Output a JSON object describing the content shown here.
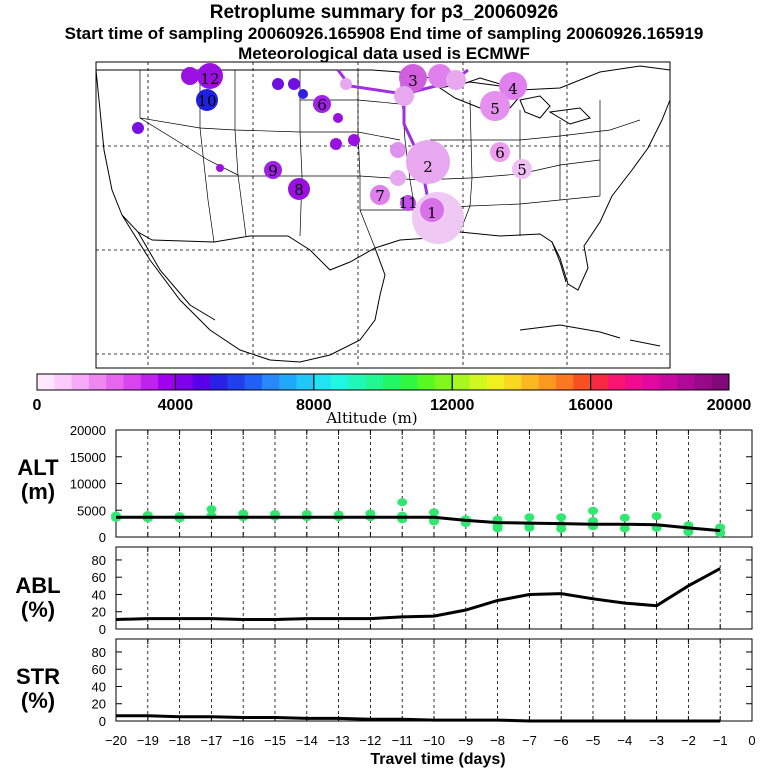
{
  "header": {
    "title": "Retroplume summary for p3_20060926",
    "subtitle": "Start time of sampling 20060926.165908     End time of sampling 20060926.165919",
    "met": "Meteorological data used is ECMWF"
  },
  "colorbar": {
    "label": "Altitude (m)",
    "ticks": [
      "0",
      "4000",
      "8000",
      "12000",
      "16000",
      "20000"
    ],
    "colors": [
      "#ffe6ff",
      "#fbccfb",
      "#f5aaf5",
      "#ee88ee",
      "#e666ee",
      "#d844ee",
      "#c022ee",
      "#a000ee",
      "#8000ee",
      "#5a00e8",
      "#2a20e6",
      "#2040ee",
      "#2060f6",
      "#2888fa",
      "#20a8fa",
      "#20c8fa",
      "#20e4f4",
      "#20f6e0",
      "#20f8b8",
      "#20f890",
      "#20f868",
      "#30f840",
      "#58f820",
      "#80f820",
      "#a8f820",
      "#d0f820",
      "#f0f020",
      "#fad820",
      "#fcb820",
      "#fc9820",
      "#fc7820",
      "#fa5020",
      "#f82840",
      "#f81470",
      "#f00c90",
      "#e008a0",
      "#c808a0",
      "#b00898",
      "#980888",
      "#800878"
    ]
  },
  "map": {
    "markers": [
      {
        "label": "1",
        "color": "#d870e8"
      },
      {
        "label": "2",
        "color": "#e8a8f0"
      },
      {
        "label": "3",
        "color": "#d060e0"
      },
      {
        "label": "4",
        "color": "#e080ee"
      },
      {
        "label": "5",
        "color": "#e490ee"
      },
      {
        "label": "5",
        "color": "#f0c0f4"
      },
      {
        "label": "6",
        "color": "#ee9cf0"
      },
      {
        "label": "6",
        "color": "#a020e8"
      },
      {
        "label": "7",
        "color": "#e080ec"
      },
      {
        "label": "8",
        "color": "#9a10e0"
      },
      {
        "label": "9",
        "color": "#a020e8"
      },
      {
        "label": "10",
        "color": "#2020e0"
      },
      {
        "label": "11",
        "color": "#c050e8"
      },
      {
        "label": "12",
        "color": "#9a10e0"
      }
    ]
  },
  "chart_data": [
    {
      "type": "scatter+line",
      "name": "ALT",
      "ylabel": "ALT (m)",
      "ylabel_line1": "ALT",
      "ylabel_line2": "(m)",
      "ylim": [
        0,
        20000
      ],
      "yticks": [
        "0",
        "5000",
        "10000",
        "15000",
        "20000"
      ],
      "x": [
        -20,
        -19,
        -18,
        -17,
        -16,
        -15,
        -14,
        -13,
        -12,
        -11,
        -10,
        -9,
        -8,
        -7,
        -6,
        -5,
        -4,
        -3,
        -2,
        -1
      ],
      "mean_line": [
        3700,
        3700,
        3700,
        3700,
        3700,
        3700,
        3700,
        3700,
        3700,
        3700,
        3700,
        3100,
        2700,
        2600,
        2500,
        2400,
        2400,
        2300,
        1700,
        1200
      ],
      "scatter_points": [
        [
          -20,
          4000
        ],
        [
          -20,
          3600
        ],
        [
          -19,
          4100
        ],
        [
          -19,
          3500
        ],
        [
          -18,
          3900
        ],
        [
          -18,
          3500
        ],
        [
          -17,
          5200
        ],
        [
          -17,
          4000
        ],
        [
          -16,
          4400
        ],
        [
          -16,
          3700
        ],
        [
          -15,
          4300
        ],
        [
          -15,
          3800
        ],
        [
          -14,
          4300
        ],
        [
          -14,
          3700
        ],
        [
          -13,
          4200
        ],
        [
          -13,
          3700
        ],
        [
          -12,
          4400
        ],
        [
          -12,
          3700
        ],
        [
          -11,
          6500
        ],
        [
          -11,
          4000
        ],
        [
          -11,
          3300
        ],
        [
          -10,
          4600
        ],
        [
          -10,
          3400
        ],
        [
          -10,
          2900
        ],
        [
          -9,
          3300
        ],
        [
          -9,
          2600
        ],
        [
          -8,
          3300
        ],
        [
          -8,
          2100
        ],
        [
          -8,
          1600
        ],
        [
          -7,
          3700
        ],
        [
          -7,
          2300
        ],
        [
          -7,
          1700
        ],
        [
          -6,
          3700
        ],
        [
          -6,
          2300
        ],
        [
          -6,
          1500
        ],
        [
          -5,
          4900
        ],
        [
          -5,
          3000
        ],
        [
          -5,
          2000
        ],
        [
          -4,
          3600
        ],
        [
          -4,
          1600
        ],
        [
          -3,
          3900
        ],
        [
          -3,
          1700
        ],
        [
          -2,
          2200
        ],
        [
          -2,
          1200
        ],
        [
          -2,
          900
        ],
        [
          -1,
          1800
        ],
        [
          -1,
          900
        ],
        [
          -1,
          700
        ]
      ]
    },
    {
      "type": "line",
      "name": "ABL",
      "ylabel": "ABL (%)",
      "ylabel_line1": "ABL",
      "ylabel_line2": "(%)",
      "ylim": [
        0,
        95
      ],
      "yticks": [
        "0",
        "20",
        "40",
        "60",
        "80"
      ],
      "x": [
        -20,
        -19,
        -18,
        -17,
        -16,
        -15,
        -14,
        -13,
        -12,
        -11,
        -10,
        -9,
        -8,
        -7,
        -6,
        -5,
        -4,
        -3,
        -2,
        -1
      ],
      "values": [
        11,
        12,
        12,
        12,
        11,
        11,
        12,
        12,
        12,
        14,
        15,
        22,
        33,
        40,
        41,
        35,
        30,
        27,
        50,
        70
      ]
    },
    {
      "type": "line",
      "name": "STR",
      "ylabel": "STR (%)",
      "ylabel_line1": "STR",
      "ylabel_line2": "(%)",
      "ylim": [
        0,
        95
      ],
      "yticks": [
        "0",
        "20",
        "40",
        "60",
        "80"
      ],
      "x": [
        -20,
        -19,
        -18,
        -17,
        -16,
        -15,
        -14,
        -13,
        -12,
        -11,
        -10,
        -9,
        -8,
        -7,
        -6,
        -5,
        -4,
        -3,
        -2,
        -1
      ],
      "values": [
        6,
        6,
        5,
        5,
        4,
        4,
        3,
        3,
        2,
        2,
        1,
        1,
        1,
        0,
        0,
        0,
        0,
        0,
        0,
        0
      ]
    }
  ],
  "xaxis": {
    "label": "Travel time (days)",
    "ticks": [
      "−20",
      "−19",
      "−18",
      "−17",
      "−16",
      "−15",
      "−14",
      "−13",
      "−12",
      "−11",
      "−10",
      "−9",
      "−8",
      "−7",
      "−6",
      "−5",
      "−4",
      "−3",
      "−2",
      "−1",
      "0"
    ]
  },
  "colors": {
    "scatter": "#30e870",
    "line": "#000000",
    "plume": "#a030e0"
  }
}
